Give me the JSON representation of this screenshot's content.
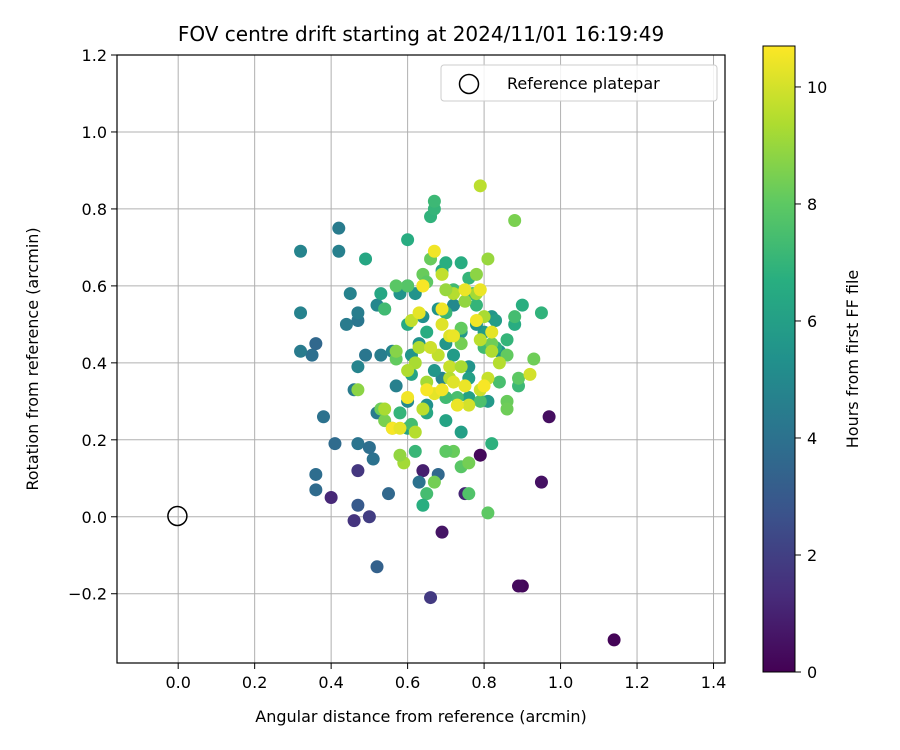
{
  "chart_data": {
    "type": "scatter",
    "title": "FOV centre drift starting at 2024/11/01 16:19:49",
    "xlabel": "Angular distance from reference (arcmin)",
    "ylabel": "Rotation from reference (arcmin)",
    "xlim": [
      -0.16,
      1.43
    ],
    "ylim": [
      -0.38,
      1.2
    ],
    "xticks": [
      0.0,
      0.2,
      0.4,
      0.6,
      0.8,
      1.0,
      1.2,
      1.4
    ],
    "xtick_labels": [
      "0.0",
      "0.2",
      "0.4",
      "0.6",
      "0.8",
      "1.0",
      "1.2",
      "1.4"
    ],
    "yticks": [
      -0.2,
      0.0,
      0.2,
      0.4,
      0.6,
      0.8,
      1.0,
      1.2
    ],
    "ytick_labels": [
      "−0.2",
      "0.0",
      "0.2",
      "0.4",
      "0.6",
      "0.8",
      "1.0",
      "1.2"
    ],
    "grid": true,
    "legend": {
      "placement": "top-right",
      "entries": [
        "Reference platepar"
      ]
    },
    "reference_point": {
      "x": 0.0,
      "y": 0.0
    },
    "colorbar": {
      "label": "Hours from first FF file",
      "range": [
        0,
        10.7
      ],
      "ticks": [
        0,
        2,
        4,
        6,
        8,
        10
      ],
      "tick_labels": [
        "0",
        "2",
        "4",
        "6",
        "8",
        "10"
      ],
      "colormap": "viridis"
    },
    "points": [
      [
        1.14,
        -0.32,
        0.1
      ],
      [
        0.9,
        -0.18,
        0.2
      ],
      [
        0.89,
        -0.18,
        0.3
      ],
      [
        0.97,
        0.26,
        0.4
      ],
      [
        0.95,
        0.09,
        0.5
      ],
      [
        0.79,
        0.16,
        0.2
      ],
      [
        0.69,
        -0.04,
        0.6
      ],
      [
        0.64,
        0.12,
        0.9
      ],
      [
        0.4,
        0.05,
        1.2
      ],
      [
        0.75,
        0.06,
        1.1
      ],
      [
        0.66,
        -0.21,
        1.8
      ],
      [
        0.46,
        -0.01,
        1.6
      ],
      [
        0.5,
        0.0,
        1.9
      ],
      [
        0.47,
        0.12,
        1.7
      ],
      [
        0.52,
        -0.13,
        3.3
      ],
      [
        0.47,
        0.03,
        3.0
      ],
      [
        0.55,
        0.06,
        3.6
      ],
      [
        0.36,
        0.07,
        3.7
      ],
      [
        0.36,
        0.11,
        3.8
      ],
      [
        0.41,
        0.19,
        3.7
      ],
      [
        0.38,
        0.26,
        4.0
      ],
      [
        0.51,
        0.15,
        4.0
      ],
      [
        0.47,
        0.19,
        4.1
      ],
      [
        0.5,
        0.18,
        3.9
      ],
      [
        0.63,
        0.09,
        4.0
      ],
      [
        0.68,
        0.11,
        3.6
      ],
      [
        0.35,
        0.42,
        3.9
      ],
      [
        0.36,
        0.45,
        3.6
      ],
      [
        0.32,
        0.43,
        4.4
      ],
      [
        0.32,
        0.53,
        4.7
      ],
      [
        0.32,
        0.69,
        4.8
      ],
      [
        0.42,
        0.75,
        4.4
      ],
      [
        0.42,
        0.69,
        4.6
      ],
      [
        0.44,
        0.5,
        4.4
      ],
      [
        0.47,
        0.51,
        4.2
      ],
      [
        0.47,
        0.53,
        4.5
      ],
      [
        0.45,
        0.58,
        4.7
      ],
      [
        0.49,
        0.42,
        4.2
      ],
      [
        0.53,
        0.42,
        4.5
      ],
      [
        0.47,
        0.39,
        4.8
      ],
      [
        0.46,
        0.33,
        4.4
      ],
      [
        0.56,
        0.43,
        4.8
      ],
      [
        0.57,
        0.34,
        4.6
      ],
      [
        0.52,
        0.55,
        4.9
      ],
      [
        0.52,
        0.27,
        4.4
      ],
      [
        0.6,
        0.3,
        5.0
      ],
      [
        0.65,
        0.29,
        5.3
      ],
      [
        0.69,
        0.36,
        4.8
      ],
      [
        0.72,
        0.55,
        5.0
      ],
      [
        0.64,
        0.52,
        5.3
      ],
      [
        0.6,
        0.6,
        5.2
      ],
      [
        0.62,
        0.58,
        5.5
      ],
      [
        0.58,
        0.58,
        5.5
      ],
      [
        0.68,
        0.54,
        5.5
      ],
      [
        0.61,
        0.42,
        5.5
      ],
      [
        0.67,
        0.38,
        5.6
      ],
      [
        0.63,
        0.45,
        5.4
      ],
      [
        0.7,
        0.45,
        5.6
      ],
      [
        0.74,
        0.48,
        5.7
      ],
      [
        0.72,
        0.42,
        5.8
      ],
      [
        0.76,
        0.39,
        5.5
      ],
      [
        0.8,
        0.48,
        5.8
      ],
      [
        0.82,
        0.52,
        5.6
      ],
      [
        0.78,
        0.5,
        5.4
      ],
      [
        0.83,
        0.51,
        5.9
      ],
      [
        0.84,
        0.43,
        5.5
      ],
      [
        0.81,
        0.3,
        5.7
      ],
      [
        0.76,
        0.36,
        6.0
      ],
      [
        0.76,
        0.31,
        6.1
      ],
      [
        0.74,
        0.22,
        6.0
      ],
      [
        0.7,
        0.25,
        6.2
      ],
      [
        0.65,
        0.27,
        6.3
      ],
      [
        0.6,
        0.23,
        6.1
      ],
      [
        0.61,
        0.37,
        6.2
      ],
      [
        0.54,
        0.54,
        6.4
      ],
      [
        0.53,
        0.58,
        6.3
      ],
      [
        0.49,
        0.67,
        6.3
      ],
      [
        0.6,
        0.72,
        6.6
      ],
      [
        0.6,
        0.5,
        6.5
      ],
      [
        0.65,
        0.48,
        6.6
      ],
      [
        0.66,
        0.78,
        6.9
      ],
      [
        0.67,
        0.8,
        7.0
      ],
      [
        0.67,
        0.82,
        7.2
      ],
      [
        0.69,
        0.64,
        6.4
      ],
      [
        0.7,
        0.66,
        6.7
      ],
      [
        0.74,
        0.66,
        6.6
      ],
      [
        0.76,
        0.62,
        7.0
      ],
      [
        0.77,
        0.58,
        7.1
      ],
      [
        0.72,
        0.59,
        7.3
      ],
      [
        0.7,
        0.53,
        7.1
      ],
      [
        0.78,
        0.55,
        7.0
      ],
      [
        0.8,
        0.44,
        7.3
      ],
      [
        0.83,
        0.44,
        6.8
      ],
      [
        0.88,
        0.5,
        6.6
      ],
      [
        0.9,
        0.55,
        6.7
      ],
      [
        0.95,
        0.53,
        6.9
      ],
      [
        0.88,
        0.52,
        7.4
      ],
      [
        0.86,
        0.46,
        7.0
      ],
      [
        0.89,
        0.34,
        7.2
      ],
      [
        0.84,
        0.35,
        7.5
      ],
      [
        0.82,
        0.19,
        6.8
      ],
      [
        0.79,
        0.3,
        7.6
      ],
      [
        0.73,
        0.31,
        7.5
      ],
      [
        0.7,
        0.31,
        7.3
      ],
      [
        0.65,
        0.06,
        7.4
      ],
      [
        0.64,
        0.03,
        6.7
      ],
      [
        0.62,
        0.17,
        7.1
      ],
      [
        0.58,
        0.27,
        7.0
      ],
      [
        0.61,
        0.24,
        7.4
      ],
      [
        0.54,
        0.54,
        7.3
      ],
      [
        0.6,
        0.6,
        7.8
      ],
      [
        0.57,
        0.6,
        7.9
      ],
      [
        0.64,
        0.63,
        8.2
      ],
      [
        0.65,
        0.61,
        8.0
      ],
      [
        0.66,
        0.67,
        8.2
      ],
      [
        0.74,
        0.49,
        8.1
      ],
      [
        0.74,
        0.45,
        8.4
      ],
      [
        0.82,
        0.45,
        8.3
      ],
      [
        0.86,
        0.42,
        8.1
      ],
      [
        0.89,
        0.36,
        8.0
      ],
      [
        0.93,
        0.41,
        8.3
      ],
      [
        0.86,
        0.3,
        8.2
      ],
      [
        0.86,
        0.28,
        8.3
      ],
      [
        0.81,
        0.01,
        8.0
      ],
      [
        0.76,
        0.06,
        7.7
      ],
      [
        0.74,
        0.13,
        7.9
      ],
      [
        0.76,
        0.14,
        8.4
      ],
      [
        0.72,
        0.17,
        8.2
      ],
      [
        0.7,
        0.17,
        8.0
      ],
      [
        0.67,
        0.09,
        8.4
      ],
      [
        0.57,
        0.41,
        8.1
      ],
      [
        0.53,
        0.28,
        8.3
      ],
      [
        0.54,
        0.25,
        8.5
      ],
      [
        0.56,
        0.23,
        8.6
      ],
      [
        0.47,
        0.33,
        8.8
      ],
      [
        0.54,
        0.28,
        9.3
      ],
      [
        0.59,
        0.14,
        9.2
      ],
      [
        0.58,
        0.16,
        8.9
      ],
      [
        0.62,
        0.22,
        9.5
      ],
      [
        0.64,
        0.28,
        9.6
      ],
      [
        0.65,
        0.35,
        9.2
      ],
      [
        0.62,
        0.4,
        9.3
      ],
      [
        0.6,
        0.38,
        9.4
      ],
      [
        0.57,
        0.43,
        8.7
      ],
      [
        0.63,
        0.44,
        9.4
      ],
      [
        0.68,
        0.42,
        9.7
      ],
      [
        0.71,
        0.39,
        9.8
      ],
      [
        0.71,
        0.36,
        9.5
      ],
      [
        0.74,
        0.39,
        9.3
      ],
      [
        0.79,
        0.46,
        9.6
      ],
      [
        0.78,
        0.58,
        9.2
      ],
      [
        0.81,
        0.67,
        9.0
      ],
      [
        0.78,
        0.63,
        8.8
      ],
      [
        0.88,
        0.77,
        8.5
      ],
      [
        0.79,
        0.86,
        9.6
      ],
      [
        0.72,
        0.58,
        9.5
      ],
      [
        0.69,
        0.63,
        9.7
      ],
      [
        0.75,
        0.56,
        8.9
      ],
      [
        0.7,
        0.59,
        9.0
      ],
      [
        0.64,
        0.6,
        9.3
      ],
      [
        0.61,
        0.51,
        9.7
      ],
      [
        0.66,
        0.44,
        9.9
      ],
      [
        0.71,
        0.47,
        10.2
      ],
      [
        0.69,
        0.5,
        10.2
      ],
      [
        0.8,
        0.52,
        9.3
      ],
      [
        0.82,
        0.43,
        9.4
      ],
      [
        0.84,
        0.4,
        9.5
      ],
      [
        0.81,
        0.36,
        9.8
      ],
      [
        0.79,
        0.33,
        9.9
      ],
      [
        0.76,
        0.29,
        10.0
      ],
      [
        0.73,
        0.29,
        10.4
      ],
      [
        0.67,
        0.32,
        10.3
      ],
      [
        0.6,
        0.31,
        10.5
      ],
      [
        0.56,
        0.23,
        10.6
      ],
      [
        0.58,
        0.23,
        10.3
      ],
      [
        0.72,
        0.35,
        10.2
      ],
      [
        0.75,
        0.34,
        10.4
      ],
      [
        0.69,
        0.33,
        10.5
      ],
      [
        0.65,
        0.33,
        10.6
      ],
      [
        0.67,
        0.69,
        10.5
      ],
      [
        0.64,
        0.6,
        10.6
      ],
      [
        0.69,
        0.54,
        10.5
      ],
      [
        0.72,
        0.47,
        10.4
      ],
      [
        0.75,
        0.59,
        10.4
      ],
      [
        0.78,
        0.51,
        10.5
      ],
      [
        0.82,
        0.48,
        10.3
      ],
      [
        0.79,
        0.59,
        10.4
      ],
      [
        0.92,
        0.37,
        10.0
      ],
      [
        0.8,
        0.34,
        10.6
      ],
      [
        0.63,
        0.53,
        10.3
      ]
    ]
  }
}
